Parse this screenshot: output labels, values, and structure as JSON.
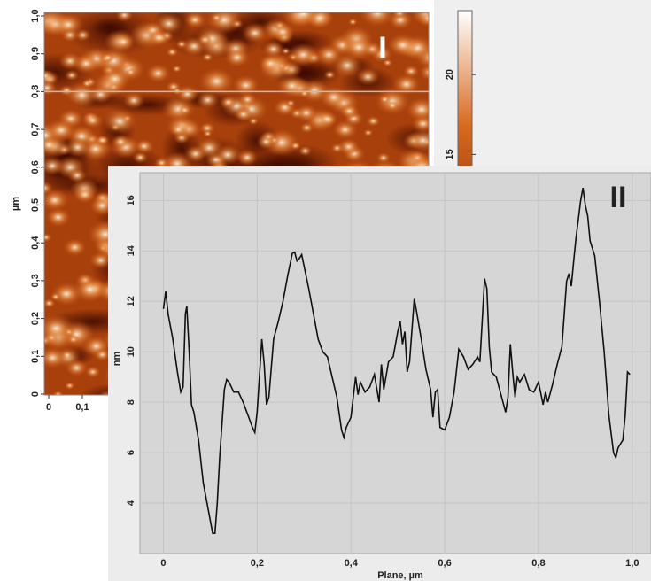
{
  "chart_data": [
    {
      "type": "image",
      "annotation": "I",
      "ylabel": "µm",
      "xlim": [
        0,
        1.13
      ],
      "ylim": [
        0,
        1
      ],
      "xticks": [
        0,
        {
          "value": 0.1,
          "label": "0,1"
        }
      ],
      "yticks": [
        0,
        {
          "value": 0.1,
          "label": "0,1"
        },
        {
          "value": 0.2,
          "label": "0,2"
        },
        {
          "value": 0.3,
          "label": "0,3"
        },
        {
          "value": 0.4,
          "label": "0,4"
        },
        {
          "value": 0.5,
          "label": "0,5"
        },
        {
          "value": 0.6,
          "label": "0,6"
        },
        {
          "value": 0.7,
          "label": "0,7"
        },
        {
          "value": 0.8,
          "label": "0,8"
        },
        {
          "value": 0.9,
          "label": "0,9"
        },
        {
          "value": 1.0,
          "label": "1,0"
        }
      ],
      "profile_y": 0.8,
      "clim": [
        0,
        24
      ],
      "cticks": [
        15,
        20
      ]
    },
    {
      "type": "line",
      "annotation": "II",
      "xlabel": "Plane, µm",
      "ylabel": "nm",
      "color": "#111111",
      "grid": true,
      "xlim": [
        -0.05,
        1.04
      ],
      "ylim": [
        2,
        17.1
      ],
      "xticks": [
        0,
        {
          "value": 0.2,
          "label": "0,2"
        },
        {
          "value": 0.4,
          "label": "0,4"
        },
        {
          "value": 0.6,
          "label": "0,6"
        },
        {
          "value": 0.8,
          "label": "0,8"
        },
        {
          "value": 1.0,
          "label": "1,0"
        }
      ],
      "yticks": [
        4,
        6,
        8,
        10,
        12,
        14,
        16
      ],
      "x": [
        0,
        0.005,
        0.01,
        0.02,
        0.03,
        0.037,
        0.042,
        0.047,
        0.05,
        0.055,
        0.06,
        0.065,
        0.075,
        0.085,
        0.095,
        0.105,
        0.11,
        0.115,
        0.12,
        0.13,
        0.135,
        0.14,
        0.15,
        0.16,
        0.17,
        0.18,
        0.19,
        0.195,
        0.2,
        0.21,
        0.215,
        0.22,
        0.225,
        0.235,
        0.245,
        0.255,
        0.265,
        0.275,
        0.28,
        0.285,
        0.29,
        0.295,
        0.3,
        0.31,
        0.32,
        0.33,
        0.34,
        0.35,
        0.36,
        0.37,
        0.38,
        0.385,
        0.39,
        0.4,
        0.41,
        0.415,
        0.42,
        0.43,
        0.44,
        0.45,
        0.46,
        0.465,
        0.47,
        0.48,
        0.49,
        0.5,
        0.505,
        0.51,
        0.515,
        0.52,
        0.525,
        0.535,
        0.54,
        0.55,
        0.56,
        0.57,
        0.575,
        0.58,
        0.585,
        0.59,
        0.6,
        0.61,
        0.62,
        0.63,
        0.64,
        0.65,
        0.66,
        0.67,
        0.675,
        0.68,
        0.685,
        0.69,
        0.695,
        0.7,
        0.71,
        0.72,
        0.73,
        0.735,
        0.74,
        0.745,
        0.75,
        0.755,
        0.76,
        0.77,
        0.78,
        0.79,
        0.8,
        0.81,
        0.815,
        0.82,
        0.83,
        0.84,
        0.85,
        0.86,
        0.865,
        0.87,
        0.875,
        0.88,
        0.89,
        0.895,
        0.9,
        0.905,
        0.91,
        0.92,
        0.93,
        0.94,
        0.95,
        0.96,
        0.965,
        0.97,
        0.98,
        0.985,
        0.99,
        0.995
      ],
      "values": [
        11.7,
        12.4,
        11.5,
        10.5,
        9.2,
        8.4,
        8.6,
        11.5,
        11.8,
        10,
        7.9,
        7.6,
        6.5,
        4.8,
        3.8,
        2.8,
        2.8,
        4,
        5.8,
        8.5,
        8.9,
        8.8,
        8.4,
        8.4,
        8.0,
        7.5,
        7.0,
        6.8,
        7.6,
        10.5,
        9.5,
        7.9,
        8.2,
        10.5,
        11.2,
        12.0,
        13.0,
        13.9,
        13.95,
        13.6,
        13.7,
        13.85,
        13.4,
        12.5,
        11.5,
        10.5,
        10.0,
        9.8,
        9.0,
        8.2,
        6.9,
        6.6,
        7.0,
        7.4,
        9.0,
        8.3,
        8.8,
        8.4,
        8.6,
        9.1,
        8.0,
        9.5,
        8.5,
        9.6,
        9.8,
        10.8,
        11.2,
        10.3,
        10.8,
        9.2,
        9.6,
        12.1,
        11.6,
        10.5,
        9.3,
        8.5,
        7.4,
        8.4,
        8.5,
        7.0,
        6.9,
        7.4,
        8.4,
        10.1,
        9.8,
        9.3,
        9.5,
        9.8,
        9.6,
        11.2,
        12.9,
        12.5,
        10.2,
        9.2,
        9.0,
        8.3,
        7.6,
        8.2,
        10.3,
        9.2,
        8.2,
        9.0,
        8.8,
        9.1,
        8.5,
        8.4,
        8.8,
        7.9,
        8.4,
        8.0,
        8.7,
        9.5,
        10.2,
        12.8,
        13.1,
        12.6,
        13.6,
        14.5,
        16.0,
        16.5,
        15.8,
        15.4,
        14.4,
        13.8,
        12.0,
        10.0,
        7.5,
        6.0,
        5.8,
        6.2,
        6.5,
        7.5,
        9.2,
        9.1
      ]
    }
  ]
}
